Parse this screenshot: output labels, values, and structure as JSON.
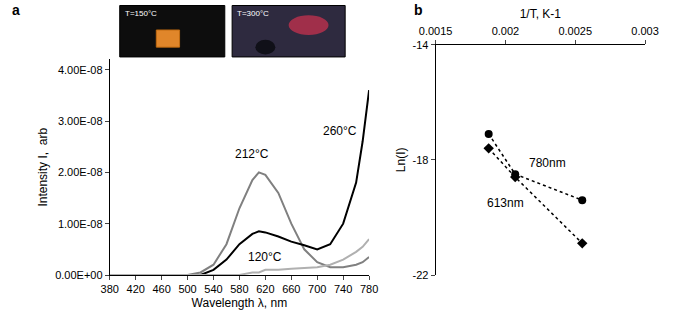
{
  "chart_data": [
    {
      "panel": "a",
      "type": "line",
      "x_label": "Wavelength λ, nm",
      "y_label": "Intensity I,  arb",
      "xlim": [
        380,
        780
      ],
      "xticks": [
        380,
        420,
        460,
        500,
        540,
        580,
        620,
        660,
        700,
        740,
        780
      ],
      "ylim": [
        0,
        4.2e-08
      ],
      "yticks": [
        {
          "value": 0,
          "label": "0.00E+00"
        },
        {
          "value": 1e-08,
          "label": "1.00E-08"
        },
        {
          "value": 2e-08,
          "label": "2.00E-08"
        },
        {
          "value": 3e-08,
          "label": "3.00E-08"
        },
        {
          "value": 4e-08,
          "label": "4.00E-08"
        }
      ],
      "grid": false,
      "x": [
        380,
        420,
        460,
        500,
        520,
        540,
        560,
        580,
        600,
        610,
        620,
        640,
        660,
        680,
        700,
        720,
        740,
        760,
        770,
        780
      ],
      "series": [
        {
          "name": "212°C",
          "color": "#808080",
          "values": [
            0,
            0,
            0,
            0,
            5e-10,
            2e-09,
            6e-09,
            1.3e-08,
            1.85e-08,
            2e-08,
            1.95e-08,
            1.6e-08,
            1e-08,
            5e-09,
            2.5e-09,
            1.5e-09,
            1.5e-09,
            2e-09,
            2.5e-09,
            3.5e-09
          ]
        },
        {
          "name": "260°C",
          "color": "#000000",
          "values": [
            0,
            0,
            0,
            0,
            0,
            1e-09,
            3e-09,
            6e-09,
            8e-09,
            8.5e-09,
            8.3e-09,
            7.5e-09,
            6.5e-09,
            5.8e-09,
            5e-09,
            6e-09,
            1e-08,
            1.8e-08,
            2.6e-08,
            3.6e-08
          ]
        },
        {
          "name": "120°C",
          "color": "#b0b0b0",
          "values": [
            0,
            0,
            0,
            0,
            0,
            0,
            0,
            0,
            5e-10,
            5e-10,
            1e-09,
            1e-09,
            1.2e-09,
            1.3e-09,
            1.5e-09,
            2e-09,
            3e-09,
            4.5e-09,
            5.5e-09,
            7e-09
          ]
        }
      ],
      "annotations": [
        {
          "text": "260°C",
          "x": 735,
          "y": 2.8e-08
        },
        {
          "text": "212°C",
          "x": 600,
          "y": 2.35e-08
        },
        {
          "text": "120°C",
          "x": 620,
          "y": 3.5e-09
        }
      ],
      "insets": [
        {
          "text": "T=150°C"
        },
        {
          "text": "T=300°C"
        }
      ]
    },
    {
      "panel": "b",
      "type": "scatter",
      "x_label": "1/T, K-1",
      "y_label": "Ln(I)",
      "xlim": [
        0.0015,
        0.003
      ],
      "xticks": [
        0.0015,
        0.002,
        0.0025,
        0.003
      ],
      "ylim": [
        -22,
        -14
      ],
      "yticks": [
        -14,
        -18,
        -22
      ],
      "grid": false,
      "series": [
        {
          "name": "780nm",
          "color": "#000000",
          "marker": "circle",
          "line_style": "dot",
          "x": [
            0.00188,
            0.00207,
            0.00255
          ],
          "values": [
            -17.1,
            -18.5,
            -19.4
          ]
        },
        {
          "name": "613nm",
          "color": "#000000",
          "marker": "diamond",
          "line_style": "dot",
          "x": [
            0.00188,
            0.00207,
            0.00255
          ],
          "values": [
            -17.6,
            -18.6,
            -20.9
          ]
        }
      ],
      "annotations": [
        {
          "text": "780nm",
          "x": 0.0023,
          "y": -18.1
        },
        {
          "text": "613nm",
          "x": 0.002,
          "y": -19.5
        }
      ]
    }
  ]
}
